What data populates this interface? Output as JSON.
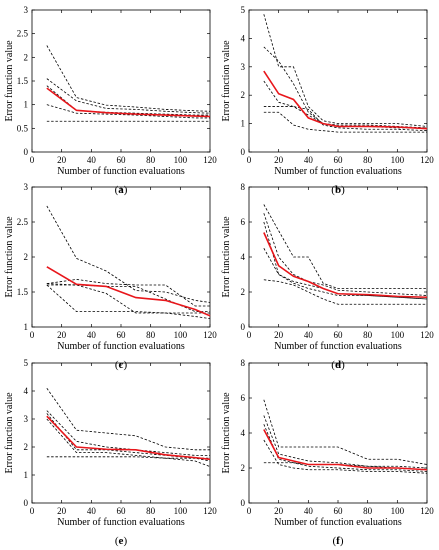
{
  "colors": {
    "mean": "#e8161b",
    "runs": "#000000",
    "axes": "#000000"
  },
  "chart_data": [
    {
      "type": "line",
      "panel_label": "(a)",
      "letter": "a",
      "xlabel": "Number of function evaluations",
      "ylabel": "Error function value",
      "xlim": [
        0,
        120
      ],
      "ylim": [
        0,
        3
      ],
      "xticks": [
        0,
        20,
        40,
        60,
        80,
        100,
        120
      ],
      "yticks": [
        0,
        0.5,
        1,
        1.5,
        2,
        2.5,
        3
      ],
      "grid": false,
      "mean_series": {
        "x": [
          10,
          30,
          50,
          70,
          90,
          110,
          120
        ],
        "y": [
          1.35,
          0.88,
          0.83,
          0.8,
          0.78,
          0.76,
          0.75
        ]
      },
      "run_series": [
        {
          "x": [
            10,
            30,
            50,
            70,
            90,
            110,
            120
          ],
          "y": [
            2.25,
            1.15,
            0.99,
            0.95,
            0.9,
            0.87,
            0.86
          ]
        },
        {
          "x": [
            10,
            30,
            50,
            70,
            90,
            110,
            120
          ],
          "y": [
            1.55,
            1.08,
            0.92,
            0.9,
            0.86,
            0.83,
            0.82
          ]
        },
        {
          "x": [
            10,
            30,
            50,
            70,
            90,
            110,
            120
          ],
          "y": [
            1.4,
            0.88,
            0.84,
            0.82,
            0.8,
            0.78,
            0.78
          ]
        },
        {
          "x": [
            10,
            30,
            50,
            70,
            90,
            110,
            120
          ],
          "y": [
            1.0,
            0.82,
            0.8,
            0.78,
            0.75,
            0.72,
            0.72
          ]
        },
        {
          "x": [
            10,
            30,
            50,
            70,
            90,
            110,
            120
          ],
          "y": [
            0.65,
            0.65,
            0.65,
            0.65,
            0.65,
            0.65,
            0.65
          ]
        }
      ]
    },
    {
      "type": "line",
      "panel_label": "(b)",
      "letter": "b",
      "xlabel": "Number of function evaluations",
      "ylabel": "Error function value",
      "xlim": [
        0,
        120
      ],
      "ylim": [
        0,
        5
      ],
      "xticks": [
        0,
        20,
        40,
        60,
        80,
        100,
        120
      ],
      "yticks": [
        0,
        1,
        2,
        3,
        4,
        5
      ],
      "grid": false,
      "mean_series": {
        "x": [
          10,
          20,
          30,
          40,
          50,
          60,
          80,
          100,
          120
        ],
        "y": [
          2.85,
          2.05,
          1.85,
          1.2,
          1.0,
          0.9,
          0.9,
          0.88,
          0.82
        ]
      },
      "run_series": [
        {
          "x": [
            10,
            20,
            30,
            40,
            50,
            60,
            80,
            100,
            120
          ],
          "y": [
            4.85,
            3.0,
            3.0,
            1.6,
            1.1,
            1.0,
            1.0,
            1.0,
            0.9
          ]
        },
        {
          "x": [
            10,
            20,
            30,
            40,
            50,
            60,
            80,
            100,
            120
          ],
          "y": [
            3.7,
            3.2,
            2.4,
            1.4,
            1.0,
            0.95,
            0.95,
            0.9,
            0.85
          ]
        },
        {
          "x": [
            10,
            20,
            30,
            40,
            50,
            60,
            80,
            100,
            120
          ],
          "y": [
            2.5,
            1.75,
            1.6,
            1.3,
            1.0,
            0.9,
            0.9,
            0.85,
            0.85
          ]
        },
        {
          "x": [
            10,
            20,
            30,
            40,
            50,
            60,
            80,
            100,
            120
          ],
          "y": [
            1.6,
            1.6,
            1.6,
            1.5,
            0.95,
            0.85,
            0.8,
            0.8,
            0.75
          ]
        },
        {
          "x": [
            10,
            20,
            30,
            40,
            50,
            60,
            80,
            100,
            120
          ],
          "y": [
            1.4,
            1.4,
            0.95,
            0.8,
            0.75,
            0.7,
            0.7,
            0.7,
            0.7
          ]
        }
      ]
    },
    {
      "type": "line",
      "panel_label": "(c)",
      "letter": "c",
      "xlabel": "Number of function evaluations",
      "ylabel": "Error function value",
      "xlim": [
        0,
        120
      ],
      "ylim": [
        1,
        3
      ],
      "xticks": [
        0,
        20,
        40,
        60,
        80,
        100,
        120
      ],
      "yticks": [
        1,
        1.5,
        2,
        2.5,
        3
      ],
      "grid": false,
      "mean_series": {
        "x": [
          10,
          30,
          50,
          70,
          90,
          110,
          120
        ],
        "y": [
          1.86,
          1.61,
          1.58,
          1.42,
          1.38,
          1.25,
          1.16
        ]
      },
      "run_series": [
        {
          "x": [
            10,
            30,
            50,
            70,
            90,
            110,
            120
          ],
          "y": [
            2.73,
            1.98,
            1.8,
            1.52,
            1.5,
            1.38,
            1.35
          ]
        },
        {
          "x": [
            10,
            30,
            50,
            70,
            90,
            110,
            120
          ],
          "y": [
            1.62,
            1.68,
            1.62,
            1.6,
            1.6,
            1.3,
            1.3
          ]
        },
        {
          "x": [
            10,
            30,
            50,
            70,
            90,
            110,
            120
          ],
          "y": [
            1.62,
            1.6,
            1.58,
            1.58,
            1.4,
            1.22,
            1.22
          ]
        },
        {
          "x": [
            10,
            30,
            50,
            70,
            90,
            110,
            120
          ],
          "y": [
            1.6,
            1.6,
            1.48,
            1.2,
            1.2,
            1.2,
            1.2
          ]
        },
        {
          "x": [
            10,
            30,
            50,
            70,
            90,
            110,
            120
          ],
          "y": [
            1.6,
            1.22,
            1.22,
            1.22,
            1.2,
            1.15,
            1.12
          ]
        }
      ]
    },
    {
      "type": "line",
      "panel_label": "(d)",
      "letter": "d",
      "xlabel": "Number of function evaluations",
      "ylabel": "Error function value",
      "xlim": [
        0,
        120
      ],
      "ylim": [
        0,
        8
      ],
      "xticks": [
        0,
        20,
        40,
        60,
        80,
        100,
        120
      ],
      "yticks": [
        0,
        2,
        4,
        6,
        8
      ],
      "grid": false,
      "mean_series": {
        "x": [
          10,
          20,
          30,
          40,
          50,
          60,
          80,
          100,
          120
        ],
        "y": [
          5.4,
          3.5,
          2.9,
          2.6,
          2.2,
          1.9,
          1.85,
          1.75,
          1.7
        ]
      },
      "run_series": [
        {
          "x": [
            10,
            20,
            30,
            40,
            50,
            60,
            80,
            100,
            120
          ],
          "y": [
            7.0,
            5.5,
            4.0,
            4.0,
            2.5,
            2.2,
            2.2,
            2.2,
            2.2
          ]
        },
        {
          "x": [
            10,
            20,
            30,
            40,
            50,
            60,
            80,
            100,
            120
          ],
          "y": [
            6.5,
            4.0,
            3.0,
            2.6,
            2.4,
            2.1,
            2.0,
            1.9,
            1.8
          ]
        },
        {
          "x": [
            10,
            20,
            30,
            40,
            50,
            60,
            80,
            100,
            120
          ],
          "y": [
            6.0,
            3.0,
            2.6,
            2.4,
            2.2,
            1.9,
            1.8,
            1.7,
            1.6
          ]
        },
        {
          "x": [
            10,
            20,
            30,
            40,
            50,
            60,
            80,
            100,
            120
          ],
          "y": [
            4.5,
            3.0,
            2.5,
            2.2,
            2.0,
            1.8,
            1.8,
            1.7,
            1.6
          ]
        },
        {
          "x": [
            10,
            20,
            30,
            40,
            50,
            60,
            80,
            100,
            120
          ],
          "y": [
            2.7,
            2.6,
            2.4,
            2.0,
            1.6,
            1.3,
            1.3,
            1.3,
            1.3
          ]
        }
      ]
    },
    {
      "type": "line",
      "panel_label": "(e)",
      "letter": "e",
      "xlabel": "Number of function evaluations",
      "ylabel": "Error function value",
      "xlim": [
        0,
        120
      ],
      "ylim": [
        0,
        5
      ],
      "xticks": [
        0,
        20,
        40,
        60,
        80,
        100,
        120
      ],
      "yticks": [
        0,
        1,
        2,
        3,
        4,
        5
      ],
      "grid": false,
      "mean_series": {
        "x": [
          10,
          30,
          50,
          70,
          90,
          110,
          120
        ],
        "y": [
          3.1,
          2.0,
          1.92,
          1.9,
          1.72,
          1.62,
          1.56
        ]
      },
      "run_series": [
        {
          "x": [
            10,
            30,
            50,
            70,
            90,
            110,
            120
          ],
          "y": [
            4.1,
            2.6,
            2.5,
            2.4,
            2.0,
            1.9,
            1.9
          ]
        },
        {
          "x": [
            10,
            30,
            50,
            70,
            90,
            110,
            120
          ],
          "y": [
            3.3,
            2.2,
            2.0,
            1.9,
            1.8,
            1.7,
            1.7
          ]
        },
        {
          "x": [
            10,
            30,
            50,
            70,
            90,
            110,
            120
          ],
          "y": [
            3.2,
            1.9,
            1.9,
            1.8,
            1.7,
            1.6,
            1.5
          ]
        },
        {
          "x": [
            10,
            30,
            50,
            70,
            90,
            110,
            120
          ],
          "y": [
            3.0,
            1.8,
            1.8,
            1.7,
            1.6,
            1.5,
            1.3
          ]
        },
        {
          "x": [
            10,
            30,
            50,
            70,
            90,
            110,
            120
          ],
          "y": [
            1.65,
            1.65,
            1.65,
            1.65,
            1.6,
            1.6,
            1.6
          ]
        }
      ]
    },
    {
      "type": "line",
      "panel_label": "(f)",
      "letter": "f",
      "xlabel": "Number of function evaluations",
      "ylabel": "Error function value",
      "xlim": [
        0,
        120
      ],
      "ylim": [
        0,
        8
      ],
      "xticks": [
        0,
        20,
        40,
        60,
        80,
        100,
        120
      ],
      "yticks": [
        0,
        2,
        4,
        6,
        8
      ],
      "grid": false,
      "mean_series": {
        "x": [
          10,
          20,
          30,
          40,
          60,
          80,
          100,
          120
        ],
        "y": [
          4.2,
          2.6,
          2.4,
          2.2,
          2.2,
          2.0,
          2.0,
          1.9
        ]
      },
      "run_series": [
        {
          "x": [
            10,
            20,
            30,
            40,
            60,
            80,
            100,
            120
          ],
          "y": [
            5.9,
            3.2,
            3.2,
            3.2,
            3.2,
            2.5,
            2.5,
            2.2
          ]
        },
        {
          "x": [
            10,
            20,
            30,
            40,
            60,
            80,
            100,
            120
          ],
          "y": [
            5.0,
            2.8,
            2.6,
            2.4,
            2.3,
            2.1,
            2.1,
            2.0
          ]
        },
        {
          "x": [
            10,
            20,
            30,
            40,
            60,
            80,
            100,
            120
          ],
          "y": [
            4.5,
            2.5,
            2.3,
            2.1,
            2.0,
            1.9,
            1.9,
            1.8
          ]
        },
        {
          "x": [
            10,
            20,
            30,
            40,
            60,
            80,
            100,
            120
          ],
          "y": [
            3.6,
            2.2,
            2.0,
            1.9,
            1.9,
            1.8,
            1.8,
            1.7
          ]
        },
        {
          "x": [
            10,
            20,
            30,
            40,
            60,
            80,
            100,
            120
          ],
          "y": [
            2.3,
            2.3,
            2.3,
            2.2,
            2.2,
            2.1,
            2.0,
            1.9
          ]
        }
      ]
    }
  ]
}
